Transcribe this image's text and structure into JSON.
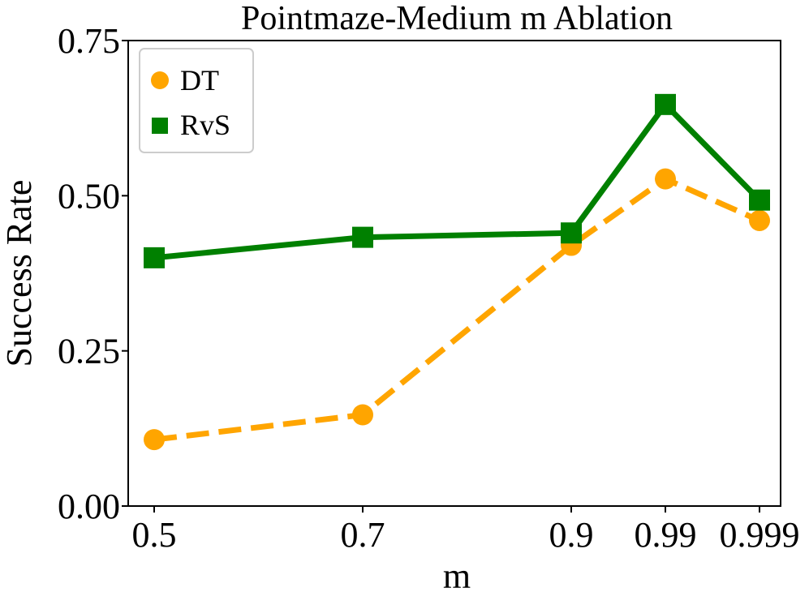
{
  "chart_data": {
    "type": "line",
    "title": "Pointmaze-Medium m Ablation",
    "xlabel": "m",
    "ylabel": "Success Rate",
    "categories": [
      "0.5",
      "0.7",
      "0.9",
      "0.99",
      "0.999"
    ],
    "ylim": [
      0,
      0.75
    ],
    "yticks": [
      "0.00",
      "0.25",
      "0.50",
      "0.75"
    ],
    "yticks_values": [
      0,
      0.25,
      0.5,
      0.75
    ],
    "legend_position": "top-left",
    "series": [
      {
        "name": "DT",
        "color": "#FFA500",
        "marker": "circle",
        "line_style": "dashed",
        "values": [
          0.107,
          0.147,
          0.42,
          0.527,
          0.46
        ]
      },
      {
        "name": "RvS",
        "color": "#008000",
        "marker": "square",
        "line_style": "solid",
        "values": [
          0.4,
          0.433,
          0.44,
          0.647,
          0.493
        ]
      }
    ]
  }
}
